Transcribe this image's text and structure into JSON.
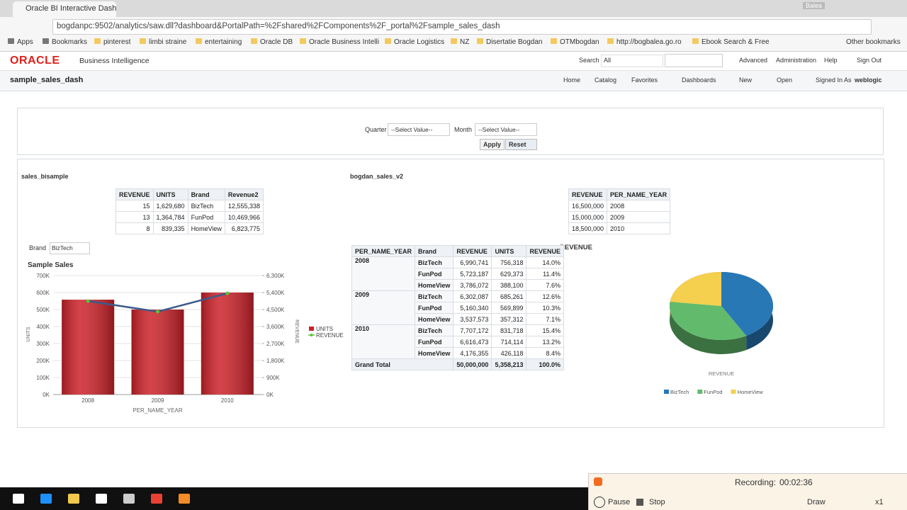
{
  "browser": {
    "tab_title": "Oracle BI Interactive Dash",
    "user": "Balea",
    "url": "bogdanpc:9502/analytics/saw.dll?dashboard&PortalPath=%2Fshared%2FComponents%2F_portal%2Fsample_sales_dash",
    "bookmarks": [
      "Apps",
      "Bookmarks",
      "pinterest",
      "limbi straine",
      "entertaining",
      "Oracle DB",
      "Oracle Business Intelli",
      "Oracle Logistics",
      "NZ",
      "Disertatie Bogdan",
      "OTMbogdan",
      "http://bogbalea.go.ro",
      "Ebook Search & Free"
    ],
    "other_bookmarks": "Other bookmarks"
  },
  "header": {
    "logo": "ORACLE",
    "product": "Business Intelligence",
    "search_label": "Search",
    "search_scope": "All",
    "links": [
      "Advanced",
      "Administration",
      "Help",
      "Sign Out"
    ]
  },
  "dashboard": {
    "title": "sample_sales_dash",
    "nav": [
      "Home",
      "Catalog",
      "Favorites",
      "Dashboards",
      "New",
      "Open"
    ],
    "signed_in_label": "Signed In As",
    "user": "weblogic"
  },
  "prompts": {
    "quarter_label": "Quarter",
    "quarter_value": "--Select Value--",
    "month_label": "Month",
    "month_value": "--Select Value--",
    "apply": "Apply",
    "reset": "Reset"
  },
  "sections": {
    "left_title": "sales_bisample",
    "right_title": "bogdan_sales_v2"
  },
  "table1": {
    "columns": [
      "REVENUE",
      "UNITS",
      "Brand",
      "Revenue2"
    ],
    "rows": [
      [
        "15",
        "1,629,680",
        "BizTech",
        "12,555,338"
      ],
      [
        "13",
        "1,364,784",
        "FunPod",
        "10,469,966"
      ],
      [
        "8",
        "839,335",
        "HomeView",
        "6,823,775"
      ]
    ]
  },
  "table2": {
    "columns": [
      "REVENUE",
      "PER_NAME_YEAR"
    ],
    "rows": [
      [
        "16,500,000",
        "2008"
      ],
      [
        "15,000,000",
        "2009"
      ],
      [
        "18,500,000",
        "2010"
      ]
    ]
  },
  "pivot": {
    "columns": [
      "PER_NAME_YEAR",
      "Brand",
      "REVENUE",
      "UNITS",
      "REVENUE"
    ],
    "groups": [
      {
        "year": "2008",
        "rows": [
          [
            "BizTech",
            "6,990,741",
            "756,318",
            "14.0%"
          ],
          [
            "FunPod",
            "5,723,187",
            "629,373",
            "11.4%"
          ],
          [
            "HomeView",
            "3,786,072",
            "388,100",
            "7.6%"
          ]
        ]
      },
      {
        "year": "2009",
        "rows": [
          [
            "BizTech",
            "6,302,087",
            "685,261",
            "12.6%"
          ],
          [
            "FunPod",
            "5,160,340",
            "569,899",
            "10.3%"
          ],
          [
            "HomeView",
            "3,537,573",
            "357,312",
            "7.1%"
          ]
        ]
      },
      {
        "year": "2010",
        "rows": [
          [
            "BizTech",
            "7,707,172",
            "831,718",
            "15.4%"
          ],
          [
            "FunPod",
            "6,616,473",
            "714,114",
            "13.2%"
          ],
          [
            "HomeView",
            "4,176,355",
            "426,118",
            "8.4%"
          ]
        ]
      }
    ],
    "total": [
      "Grand Total",
      "50,000,000",
      "5,358,213",
      "100.0%"
    ]
  },
  "brand_prompt": {
    "label": "Brand",
    "value": "BizTech"
  },
  "chart_data": [
    {
      "type": "combo",
      "title": "Sample Sales",
      "categories": [
        "2008",
        "2009",
        "2010"
      ],
      "xlabel": "PER_NAME_YEAR",
      "ylabel": "UNITS",
      "y2label": "REVENUE",
      "series": [
        {
          "name": "UNITS",
          "type": "bar",
          "color": "#cc2229",
          "values": [
            558000,
            500000,
            600000
          ]
        },
        {
          "name": "REVENUE",
          "type": "line",
          "axis": "y2",
          "color": "#3c5a8a",
          "marker_color": "#5cc43c",
          "values": [
            4950000,
            4390000,
            5360000
          ]
        }
      ],
      "ylim": [
        0,
        700000
      ],
      "yticks": [
        {
          "value": 0,
          "label": "0K"
        },
        {
          "value": 100000,
          "label": "100K"
        },
        {
          "value": 200000,
          "label": "200K"
        },
        {
          "value": 300000,
          "label": "300K"
        },
        {
          "value": 400000,
          "label": "400K"
        },
        {
          "value": 500000,
          "label": "500K"
        },
        {
          "value": 600000,
          "label": "600K"
        },
        {
          "value": 700000,
          "label": "700K"
        }
      ],
      "y2lim": [
        0,
        6300000
      ],
      "y2ticks": [
        {
          "value": 0,
          "label": "0K"
        },
        {
          "value": 900000,
          "label": "900K"
        },
        {
          "value": 1800000,
          "label": "1,800K"
        },
        {
          "value": 2700000,
          "label": "2,700K"
        },
        {
          "value": 3600000,
          "label": "3,600K"
        },
        {
          "value": 4500000,
          "label": "4,500K"
        },
        {
          "value": 5400000,
          "label": "5,400K"
        },
        {
          "value": 6300000,
          "label": "6,300K"
        }
      ],
      "grid": true,
      "legend": "right"
    },
    {
      "type": "pie",
      "title": "REVENUE",
      "label": "REVENUE",
      "categories": [
        "BizTech",
        "FunPod",
        "HomeView"
      ],
      "values": [
        42,
        35,
        23
      ],
      "colors": [
        "#2878b5",
        "#62bb6c",
        "#f5cf4e"
      ],
      "legend": "bottom"
    }
  ],
  "recorder": {
    "label": "Recording:",
    "time": "00:02:36",
    "pause": "Pause",
    "stop": "Stop",
    "draw": "Draw",
    "zoom": "x1"
  }
}
